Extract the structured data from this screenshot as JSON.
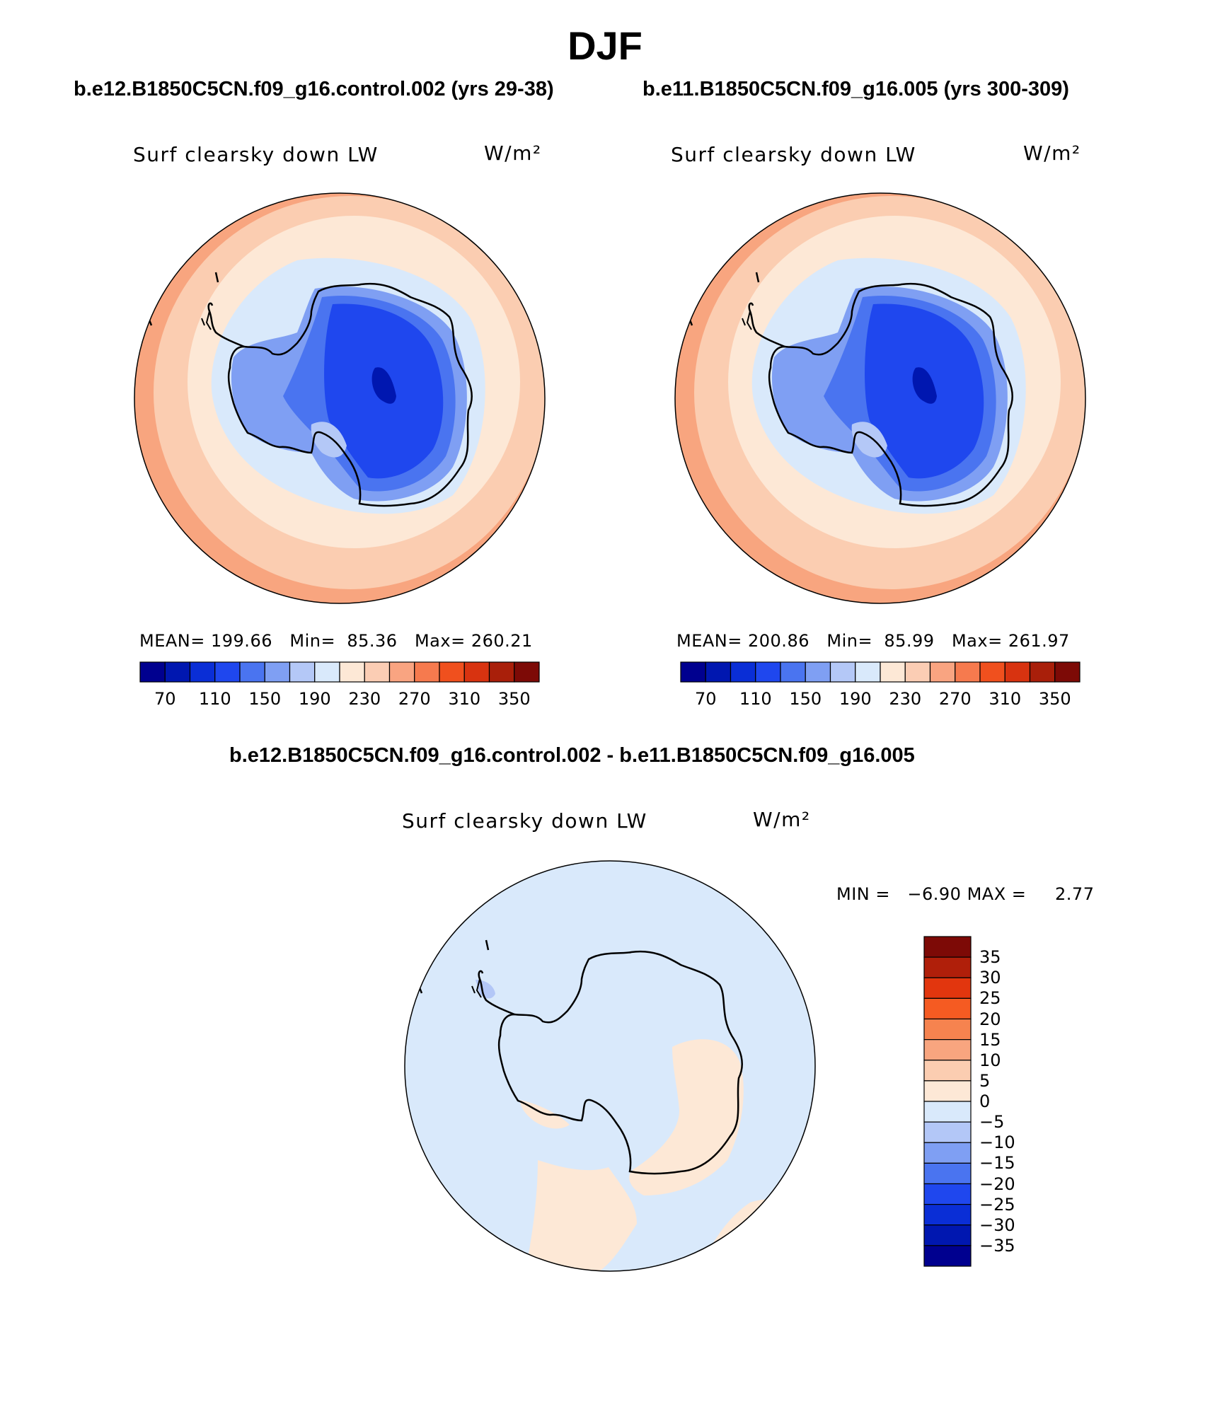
{
  "title": "DJF",
  "panels": [
    {
      "case_title": "b.e12.B1850C5CN.f09_g16.control.002 (yrs 29-38)",
      "label": "Surf clearsky down LW",
      "units": "W/m²",
      "stats": {
        "mean_label": "MEAN=",
        "mean": "199.66",
        "min_label": "Min=",
        "min": "85.36",
        "max_label": "Max=",
        "max": "260.21"
      }
    },
    {
      "case_title": "b.e11.B1850C5CN.f09_g16.005 (yrs 300-309)",
      "label": "Surf clearsky down LW",
      "units": "W/m²",
      "stats": {
        "mean_label": "MEAN=",
        "mean": "200.86",
        "min_label": "Min=",
        "min": "85.99",
        "max_label": "Max=",
        "max": "261.97"
      }
    }
  ],
  "diff_panel": {
    "case_title": "b.e12.B1850C5CN.f09_g16.control.002 - b.e11.B1850C5CN.f09_g16.005",
    "label": "Surf clearsky down LW",
    "units": "W/m²",
    "stats": {
      "min_label": "MIN =",
      "min": "−6.90",
      "max_label": "MAX =",
      "max": "2.77"
    }
  },
  "colorbars": {
    "abs": {
      "colors": [
        "#00008f",
        "#0017b0",
        "#0a2ed6",
        "#1f47ee",
        "#4a74f0",
        "#7f9ff3",
        "#b4c8f7",
        "#d9e9fb",
        "#fde8d6",
        "#fbcdb4",
        "#f9a481",
        "#f67a4e",
        "#f0501e",
        "#d83310",
        "#a91f0a",
        "#7d0a06"
      ],
      "labels": [
        "70",
        "110",
        "150",
        "190",
        "230",
        "270",
        "310",
        "350"
      ]
    },
    "diff": {
      "colors": [
        "#7d0a06",
        "#b01f0a",
        "#e2360e",
        "#f55b22",
        "#f6834f",
        "#f8a57f",
        "#fbcdb1",
        "#fde8d6",
        "#d9e9fb",
        "#b3c7f7",
        "#7f9ff3",
        "#4a74f0",
        "#1f47ee",
        "#0a2ed6",
        "#0017b0",
        "#00008f"
      ],
      "labels": [
        "35",
        "30",
        "25",
        "20",
        "15",
        "10",
        "5",
        "0",
        "−5",
        "−10",
        "−15",
        "−20",
        "−25",
        "−30",
        "−35"
      ]
    }
  }
}
